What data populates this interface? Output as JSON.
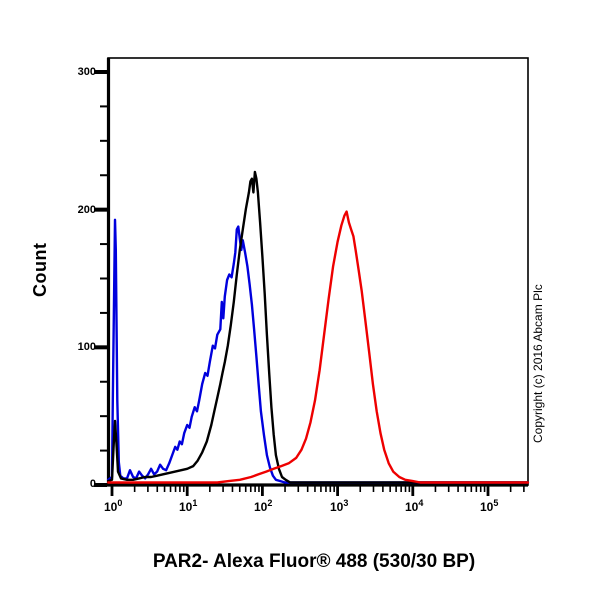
{
  "figure": {
    "title": "PAR2- Alexa Fluor® 488 (530/30 BP)",
    "copyright": "Copyright (c) 2016 Abcam Plc",
    "background_color": "#ffffff"
  },
  "chart_data": {
    "type": "line",
    "subtype": "flow-cytometry-histogram-overlay",
    "title": "",
    "xlabel": "PAR2- Alexa Fluor® 488 (530/30 BP)",
    "ylabel": "Count",
    "grid": false,
    "legend": null,
    "x_scale": "log10",
    "x_range_log10": [
      -0.05,
      5.53
    ],
    "ylim": [
      0,
      300
    ],
    "y_major_ticks": [
      "0",
      "100",
      "200",
      "300"
    ],
    "y_minor_step": 25,
    "x_ticks": [
      {
        "base": "10",
        "exp": "0",
        "log": 0
      },
      {
        "base": "10",
        "exp": "1",
        "log": 1
      },
      {
        "base": "10",
        "exp": "2",
        "log": 2
      },
      {
        "base": "10",
        "exp": "3",
        "log": 3
      },
      {
        "base": "10",
        "exp": "4",
        "log": 4
      },
      {
        "base": "10",
        "exp": "5",
        "log": 5
      }
    ],
    "axis_color": "#000000",
    "series": [
      {
        "name": "blue-curve",
        "color": "#0000dd",
        "peak": {
          "x_log10": 1.67,
          "count": 187
        },
        "points": [
          [
            -0.05,
            2
          ],
          [
            0.0,
            4
          ],
          [
            0.01,
            60
          ],
          [
            0.03,
            150
          ],
          [
            0.04,
            192
          ],
          [
            0.05,
            170
          ],
          [
            0.07,
            60
          ],
          [
            0.09,
            15
          ],
          [
            0.11,
            5
          ],
          [
            0.15,
            3
          ],
          [
            0.2,
            3
          ],
          [
            0.24,
            9
          ],
          [
            0.28,
            4
          ],
          [
            0.32,
            3
          ],
          [
            0.36,
            8
          ],
          [
            0.4,
            5
          ],
          [
            0.44,
            3
          ],
          [
            0.48,
            6
          ],
          [
            0.52,
            10
          ],
          [
            0.56,
            6
          ],
          [
            0.6,
            8
          ],
          [
            0.64,
            13
          ],
          [
            0.68,
            10
          ],
          [
            0.72,
            9
          ],
          [
            0.76,
            14
          ],
          [
            0.8,
            20
          ],
          [
            0.84,
            26
          ],
          [
            0.87,
            24
          ],
          [
            0.9,
            30
          ],
          [
            0.93,
            28
          ],
          [
            0.96,
            36
          ],
          [
            1.0,
            42
          ],
          [
            1.03,
            40
          ],
          [
            1.06,
            48
          ],
          [
            1.1,
            55
          ],
          [
            1.13,
            52
          ],
          [
            1.16,
            60
          ],
          [
            1.2,
            72
          ],
          [
            1.24,
            80
          ],
          [
            1.27,
            78
          ],
          [
            1.3,
            88
          ],
          [
            1.34,
            100
          ],
          [
            1.37,
            98
          ],
          [
            1.4,
            108
          ],
          [
            1.44,
            112
          ],
          [
            1.46,
            132
          ],
          [
            1.48,
            120
          ],
          [
            1.5,
            136
          ],
          [
            1.53,
            148
          ],
          [
            1.56,
            152
          ],
          [
            1.59,
            150
          ],
          [
            1.62,
            160
          ],
          [
            1.64,
            168
          ],
          [
            1.66,
            185
          ],
          [
            1.68,
            187
          ],
          [
            1.7,
            178
          ],
          [
            1.72,
            170
          ],
          [
            1.74,
            177
          ],
          [
            1.77,
            168
          ],
          [
            1.8,
            158
          ],
          [
            1.83,
            145
          ],
          [
            1.86,
            130
          ],
          [
            1.89,
            112
          ],
          [
            1.92,
            92
          ],
          [
            1.95,
            72
          ],
          [
            1.98,
            52
          ],
          [
            2.02,
            35
          ],
          [
            2.06,
            20
          ],
          [
            2.1,
            11
          ],
          [
            2.14,
            5
          ],
          [
            2.18,
            2
          ],
          [
            2.24,
            1
          ],
          [
            2.3,
            0
          ],
          [
            5.53,
            0
          ]
        ]
      },
      {
        "name": "black-curve",
        "color": "#000000",
        "peak": {
          "x_log10": 1.9,
          "count": 227
        },
        "points": [
          [
            -0.05,
            1
          ],
          [
            0.0,
            2
          ],
          [
            0.02,
            25
          ],
          [
            0.04,
            45
          ],
          [
            0.06,
            28
          ],
          [
            0.08,
            8
          ],
          [
            0.12,
            3
          ],
          [
            0.2,
            2
          ],
          [
            0.28,
            2
          ],
          [
            0.36,
            3
          ],
          [
            0.44,
            4
          ],
          [
            0.52,
            4
          ],
          [
            0.6,
            5
          ],
          [
            0.68,
            6
          ],
          [
            0.76,
            7
          ],
          [
            0.84,
            8
          ],
          [
            0.92,
            9
          ],
          [
            1.0,
            10
          ],
          [
            1.08,
            12
          ],
          [
            1.14,
            16
          ],
          [
            1.2,
            22
          ],
          [
            1.26,
            30
          ],
          [
            1.32,
            42
          ],
          [
            1.36,
            52
          ],
          [
            1.4,
            62
          ],
          [
            1.44,
            72
          ],
          [
            1.47,
            80
          ],
          [
            1.5,
            88
          ],
          [
            1.54,
            100
          ],
          [
            1.58,
            115
          ],
          [
            1.62,
            132
          ],
          [
            1.66,
            152
          ],
          [
            1.7,
            170
          ],
          [
            1.74,
            185
          ],
          [
            1.78,
            200
          ],
          [
            1.82,
            212
          ],
          [
            1.84,
            220
          ],
          [
            1.86,
            222
          ],
          [
            1.88,
            212
          ],
          [
            1.9,
            227
          ],
          [
            1.92,
            222
          ],
          [
            1.94,
            212
          ],
          [
            1.97,
            190
          ],
          [
            2.0,
            165
          ],
          [
            2.03,
            138
          ],
          [
            2.06,
            108
          ],
          [
            2.09,
            80
          ],
          [
            2.12,
            55
          ],
          [
            2.15,
            35
          ],
          [
            2.18,
            20
          ],
          [
            2.22,
            10
          ],
          [
            2.26,
            4
          ],
          [
            2.31,
            2
          ],
          [
            2.37,
            0
          ],
          [
            5.53,
            0
          ]
        ]
      },
      {
        "name": "red-curve",
        "color": "#ee0000",
        "peak": {
          "x_log10": 3.12,
          "count": 198
        },
        "points": [
          [
            -0.05,
            0
          ],
          [
            1.4,
            0
          ],
          [
            1.55,
            1
          ],
          [
            1.7,
            2
          ],
          [
            1.85,
            4
          ],
          [
            1.95,
            6
          ],
          [
            2.05,
            8
          ],
          [
            2.15,
            10
          ],
          [
            2.25,
            12
          ],
          [
            2.35,
            14
          ],
          [
            2.45,
            18
          ],
          [
            2.52,
            24
          ],
          [
            2.58,
            32
          ],
          [
            2.64,
            44
          ],
          [
            2.7,
            60
          ],
          [
            2.76,
            82
          ],
          [
            2.82,
            108
          ],
          [
            2.88,
            134
          ],
          [
            2.94,
            158
          ],
          [
            3.0,
            176
          ],
          [
            3.05,
            188
          ],
          [
            3.09,
            195
          ],
          [
            3.12,
            198
          ],
          [
            3.15,
            190
          ],
          [
            3.18,
            185
          ],
          [
            3.21,
            180
          ],
          [
            3.24,
            170
          ],
          [
            3.28,
            155
          ],
          [
            3.32,
            140
          ],
          [
            3.37,
            118
          ],
          [
            3.42,
            95
          ],
          [
            3.47,
            72
          ],
          [
            3.52,
            52
          ],
          [
            3.57,
            36
          ],
          [
            3.62,
            24
          ],
          [
            3.68,
            14
          ],
          [
            3.74,
            8
          ],
          [
            3.82,
            4
          ],
          [
            3.9,
            2
          ],
          [
            4.0,
            1
          ],
          [
            4.1,
            0
          ],
          [
            5.53,
            0
          ]
        ]
      }
    ]
  }
}
